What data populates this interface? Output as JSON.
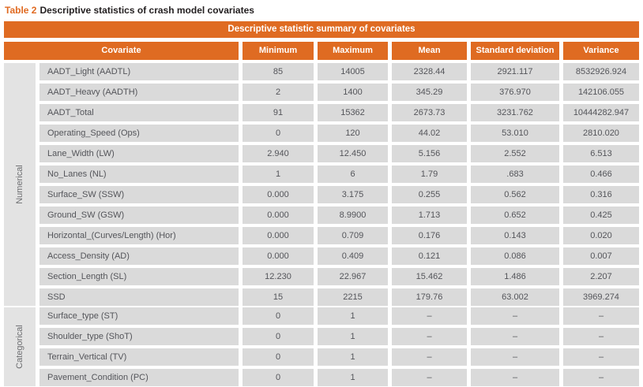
{
  "caption": {
    "label": "Table 2",
    "text": "Descriptive statistics of crash model covariates"
  },
  "table": {
    "title": "Descriptive statistic summary of covariates",
    "columns": [
      "Covariate",
      "Minimum",
      "Maximum",
      "Mean",
      "Standard deviation",
      "Variance"
    ],
    "groups": [
      {
        "label": "Numerical",
        "rows": [
          {
            "covariate": "AADT_Light (AADTL)",
            "values": [
              "85",
              "14005",
              "2328.44",
              "2921.117",
              "8532926.924"
            ]
          },
          {
            "covariate": "AADT_Heavy (AADTH)",
            "values": [
              "2",
              "1400",
              "345.29",
              "376.970",
              "142106.055"
            ]
          },
          {
            "covariate": "AADT_Total",
            "values": [
              "91",
              "15362",
              "2673.73",
              "3231.762",
              "10444282.947"
            ]
          },
          {
            "covariate": "Operating_Speed (Ops)",
            "values": [
              "0",
              "120",
              "44.02",
              "53.010",
              "2810.020"
            ]
          },
          {
            "covariate": "Lane_Width (LW)",
            "values": [
              "2.940",
              "12.450",
              "5.156",
              "2.552",
              "6.513"
            ]
          },
          {
            "covariate": "No_Lanes (NL)",
            "values": [
              "1",
              "6",
              "1.79",
              ".683",
              "0.466"
            ]
          },
          {
            "covariate": "Surface_SW (SSW)",
            "values": [
              "0.000",
              "3.175",
              "0.255",
              "0.562",
              "0.316"
            ]
          },
          {
            "covariate": "Ground_SW (GSW)",
            "values": [
              "0.000",
              "8.9900",
              "1.713",
              "0.652",
              "0.425"
            ]
          },
          {
            "covariate": "Horizontal_(Curves/Length) (Hor)",
            "values": [
              "0.000",
              "0.709",
              "0.176",
              "0.143",
              "0.020"
            ]
          },
          {
            "covariate": "Access_Density (AD)",
            "values": [
              "0.000",
              "0.409",
              "0.121",
              "0.086",
              "0.007"
            ]
          },
          {
            "covariate": "Section_Length (SL)",
            "values": [
              "12.230",
              "22.967",
              "15.462",
              "1.486",
              "2.207"
            ]
          },
          {
            "covariate": "SSD",
            "values": [
              "15",
              "2215",
              "179.76",
              "63.002",
              "3969.274"
            ]
          }
        ]
      },
      {
        "label": "Categorical",
        "rows": [
          {
            "covariate": "Surface_type (ST)",
            "values": [
              "0",
              "1",
              "–",
              "–",
              "–"
            ]
          },
          {
            "covariate": "Shoulder_type (ShoT)",
            "values": [
              "0",
              "1",
              "–",
              "–",
              "–"
            ]
          },
          {
            "covariate": "Terrain_Vertical (TV)",
            "values": [
              "0",
              "1",
              "–",
              "–",
              "–"
            ]
          },
          {
            "covariate": "Pavement_Condition (PC)",
            "values": [
              "0",
              "1",
              "–",
              "–",
              "–"
            ]
          }
        ]
      }
    ]
  },
  "colors": {
    "accent_orange": "#df6b22",
    "cell_background": "#dadada",
    "group_band_background": "#e3e3e3",
    "body_text": "#54555a",
    "header_text": "#ffffff"
  }
}
